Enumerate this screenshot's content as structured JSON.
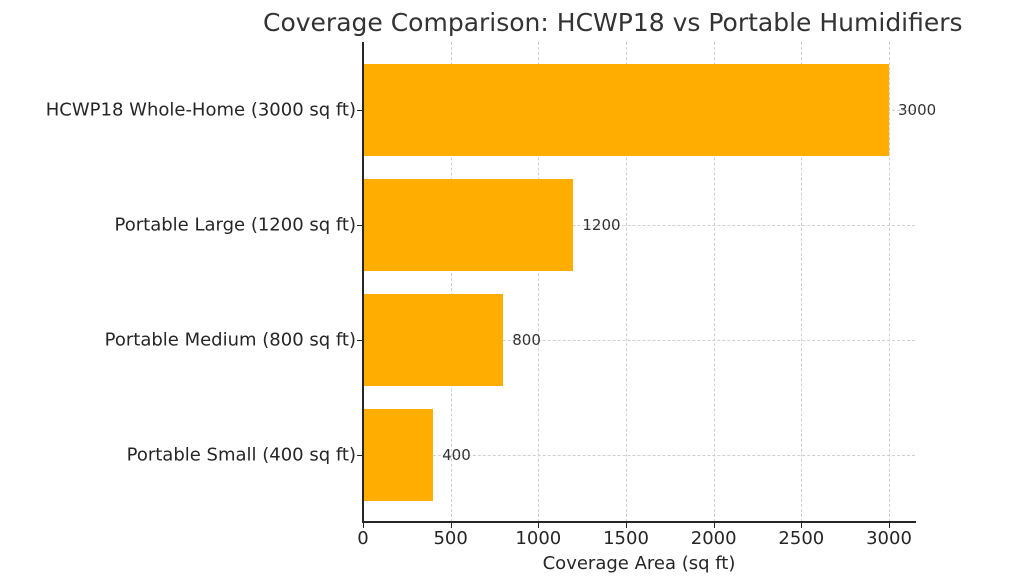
{
  "chart_data": {
    "type": "bar",
    "orientation": "horizontal",
    "title": "Coverage Comparison: HCWP18 vs Portable Humidifiers",
    "xlabel": "Coverage Area (sq ft)",
    "ylabel": "",
    "categories": [
      "HCWP18 Whole-Home (3000 sq ft)",
      "Portable Large (1200 sq ft)",
      "Portable Medium (800 sq ft)",
      "Portable Small (400 sq ft)"
    ],
    "values": [
      3000,
      1200,
      800,
      400
    ],
    "value_labels": [
      "3000",
      "1200",
      "800",
      "400"
    ],
    "xticks": [
      "0",
      "500",
      "1000",
      "1500",
      "2000",
      "2500",
      "3000"
    ],
    "xlim": [
      0,
      3150
    ],
    "grid": true,
    "bar_color": "#FFAE00",
    "legend": null
  }
}
